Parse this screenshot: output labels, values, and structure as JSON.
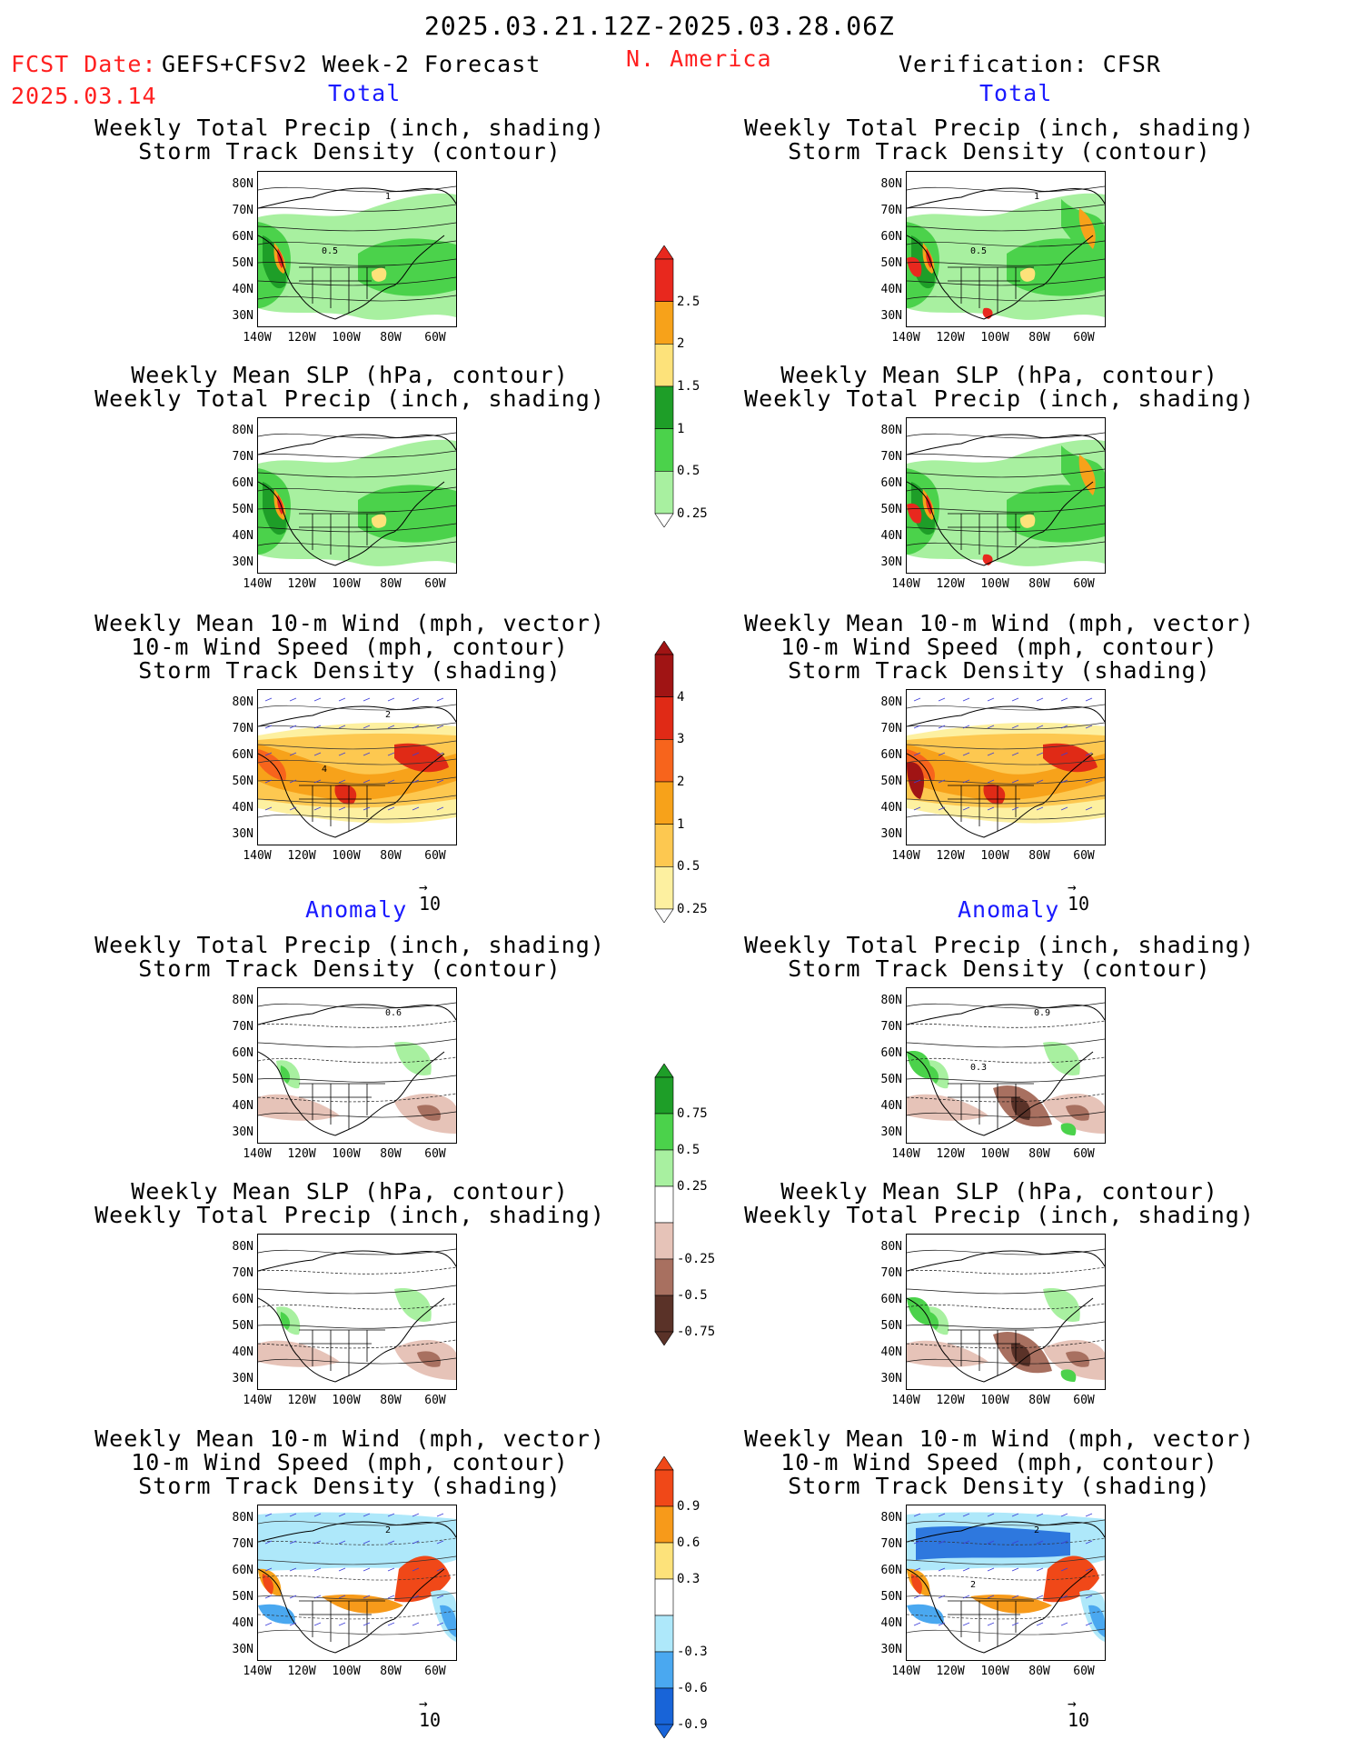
{
  "header": {
    "period": "2025.03.21.12Z-2025.03.28.06Z",
    "fcst_label": "FCST Date:",
    "fcst_date": "2025.03.14",
    "model": "GEFS+CFSv2 Week-2 Forecast",
    "region": "N. America",
    "verification": "Verification: CFSR"
  },
  "sections": {
    "total": "Total",
    "anomaly": "Anomaly"
  },
  "titles": {
    "precip_storm": [
      "Weekly Total Precip (inch, shading)",
      "Storm Track Density (contour)"
    ],
    "slp_precip": [
      "Weekly Mean SLP (hPa, contour)",
      "Weekly Total Precip (inch, shading)"
    ],
    "wind_storm": [
      "Weekly Mean 10-m Wind (mph, vector)",
      "10-m Wind Speed (mph, contour)",
      "Storm Track Density (shading)"
    ]
  },
  "axes": {
    "lat": [
      "80N",
      "70N",
      "60N",
      "50N",
      "40N",
      "30N"
    ],
    "lon": [
      "140W",
      "120W",
      "100W",
      "80W",
      "60W"
    ]
  },
  "vector_ref": "10",
  "colorbars": {
    "precip_total": {
      "labels": [
        "2.5",
        "2",
        "1.5",
        "1",
        "0.5",
        "0.25"
      ],
      "colors": [
        "#e8281e",
        "#f7a21a",
        "#fde27a",
        "#1e9e28",
        "#4bd24b",
        "#a8f0a0"
      ]
    },
    "storm_total": {
      "labels": [
        "4",
        "3",
        "2",
        "1",
        "0.5",
        "0.25"
      ],
      "colors": [
        "#a01414",
        "#e02a16",
        "#f7641c",
        "#f7a21a",
        "#fdc850",
        "#fdf0a0"
      ]
    },
    "precip_anom": {
      "labels": [
        "0.75",
        "0.5",
        "0.25",
        "-0.25",
        "-0.5",
        "-0.75"
      ],
      "colors": [
        "#1e9e28",
        "#4bd24b",
        "#a8f0a0",
        "#ffffff",
        "#e6c3b8",
        "#a87060",
        "#5a3228"
      ]
    },
    "storm_anom": {
      "labels": [
        "0.9",
        "0.6",
        "0.3",
        "-0.3",
        "-0.6",
        "-0.9"
      ],
      "colors": [
        "#f04818",
        "#f79a1a",
        "#fde27a",
        "#ffffff",
        "#aee8fa",
        "#4aa8f0",
        "#1864d8"
      ]
    }
  },
  "contour_labels": {
    "p1_left": [
      "1",
      "0.5"
    ],
    "p1_right": [
      "1",
      "0.5"
    ],
    "p3_left": [
      "2",
      "4"
    ],
    "a1_left": [
      "0.6"
    ],
    "a1_right": [
      "0.9",
      "0.3"
    ],
    "a3_left": [
      "2"
    ],
    "a3_right": [
      "2",
      "2"
    ]
  }
}
